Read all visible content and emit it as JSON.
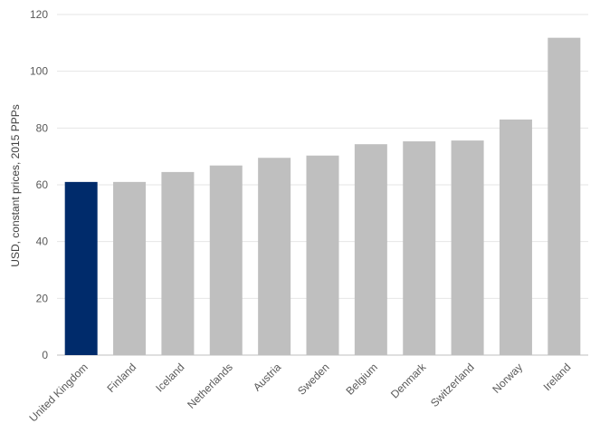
{
  "chart_data": {
    "type": "bar",
    "title": "",
    "xlabel": "",
    "ylabel": "USD, constant prices, 2015 PPPs",
    "categories": [
      "United Kingdom",
      "Finland",
      "Iceland",
      "Netherlands",
      "Austria",
      "Sweden",
      "Belgium",
      "Denmark",
      "Switzerland",
      "Norway",
      "Ireland"
    ],
    "values": [
      61,
      61,
      64.5,
      66.8,
      69.5,
      70.3,
      74.3,
      75.3,
      75.6,
      83,
      111.8
    ],
    "highlight_category": "United Kingdom",
    "ylim": [
      0,
      120
    ],
    "yticks": [
      0,
      20,
      40,
      60,
      80,
      100,
      120
    ],
    "grid": true,
    "legend": "none",
    "colors": {
      "highlight": "#002b6b",
      "default": "#bfbfbf",
      "grid": "#e6e6e6",
      "axis": "#bfbfbf"
    }
  }
}
